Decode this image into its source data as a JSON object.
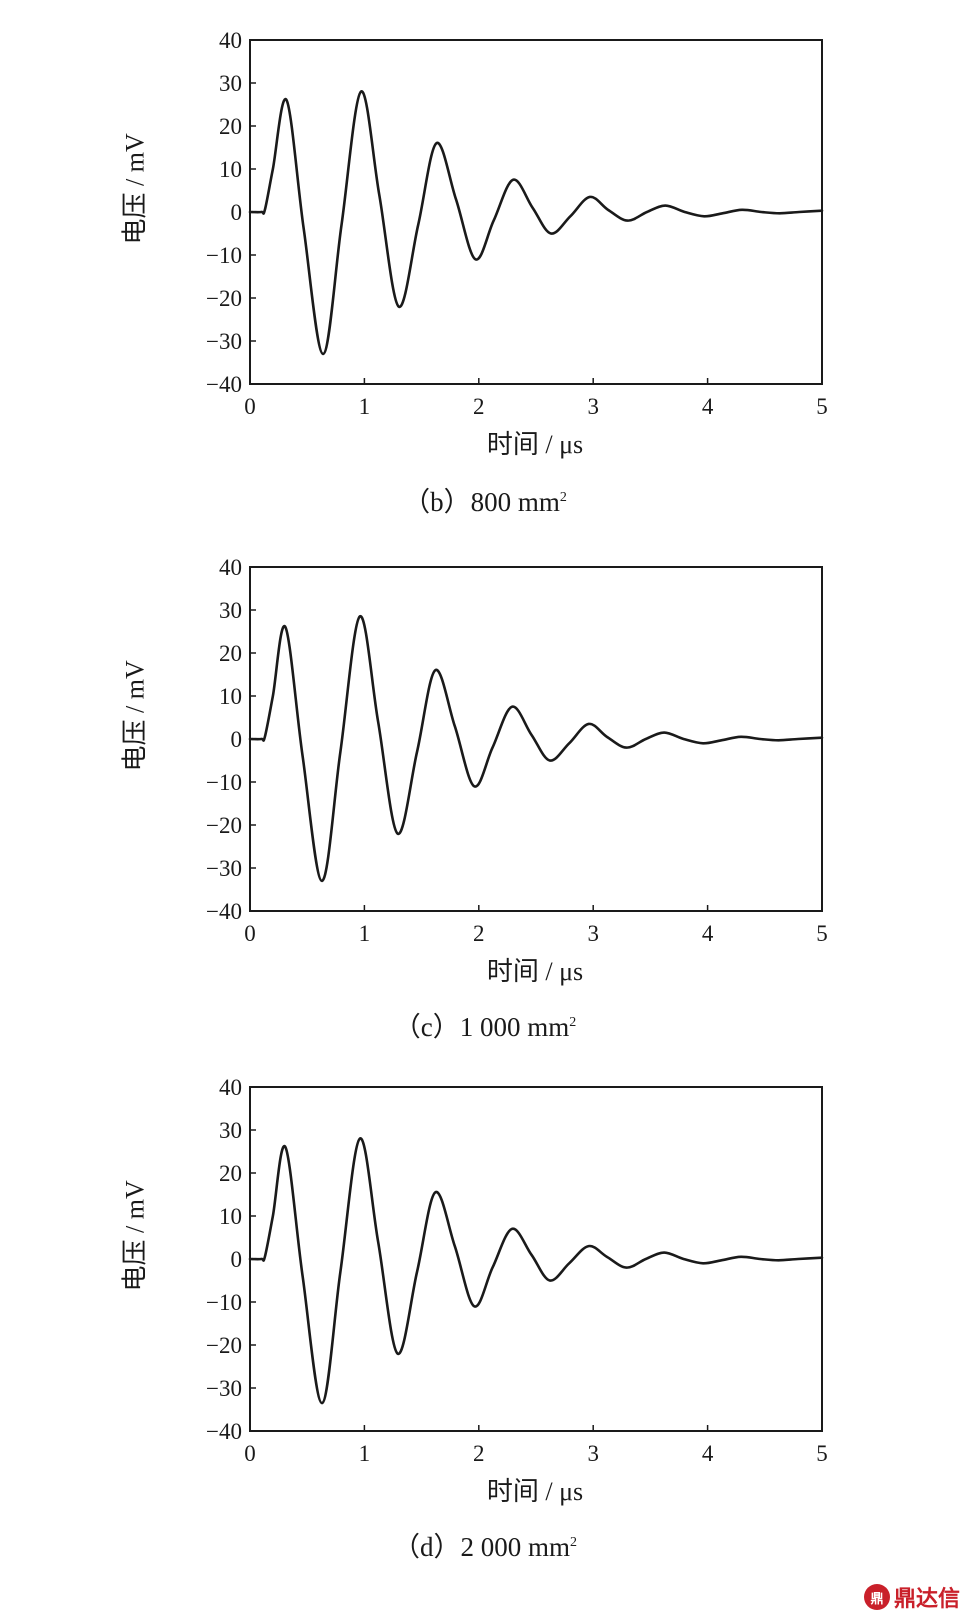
{
  "chart_data": [
    {
      "type": "line",
      "caption_prefix": "（b）800 mm",
      "caption_sup": "2",
      "xlabel": "时间 / μs",
      "ylabel": "电压 / mV",
      "xlim": [
        0,
        5
      ],
      "ylim": [
        -40,
        40
      ],
      "xticks": [
        0,
        1,
        2,
        3,
        4,
        5
      ],
      "yticks": [
        40,
        30,
        20,
        10,
        0,
        -10,
        -20,
        -30,
        -40
      ],
      "grid": false,
      "series": [
        {
          "color": "#1a1a1a",
          "x": [
            0,
            0.1,
            0.13,
            0.2,
            0.32,
            0.47,
            0.64,
            0.8,
            0.97,
            1.13,
            1.3,
            1.47,
            1.63,
            1.8,
            1.97,
            2.13,
            2.3,
            2.47,
            2.63,
            2.8,
            2.97,
            3.13,
            3.3,
            3.47,
            3.63,
            3.8,
            3.97,
            4.13,
            4.3,
            4.47,
            4.63,
            4.8,
            5.0
          ],
          "y": [
            0,
            0,
            0.5,
            10,
            26,
            -4,
            -33,
            -3,
            28,
            4,
            -22,
            -3,
            16,
            3,
            -11,
            -2,
            7.5,
            1,
            -5,
            -1,
            3.5,
            0.5,
            -2,
            0,
            1.5,
            0,
            -1,
            -0.3,
            0.5,
            0,
            -0.3,
            0,
            0.3
          ]
        }
      ]
    },
    {
      "type": "line",
      "caption_prefix": "（c）1 000 mm",
      "caption_sup": "2",
      "xlabel": "时间 / μs",
      "ylabel": "电压 / mV",
      "xlim": [
        0,
        5
      ],
      "ylim": [
        -40,
        40
      ],
      "xticks": [
        0,
        1,
        2,
        3,
        4,
        5
      ],
      "yticks": [
        40,
        30,
        20,
        10,
        0,
        -10,
        -20,
        -30,
        -40
      ],
      "grid": false,
      "series": [
        {
          "color": "#1a1a1a",
          "x": [
            0,
            0.1,
            0.13,
            0.2,
            0.31,
            0.46,
            0.63,
            0.79,
            0.96,
            1.12,
            1.29,
            1.46,
            1.62,
            1.79,
            1.96,
            2.12,
            2.29,
            2.46,
            2.62,
            2.79,
            2.96,
            3.12,
            3.29,
            3.46,
            3.62,
            3.79,
            3.96,
            4.12,
            4.29,
            4.46,
            4.62,
            4.79,
            5.0
          ],
          "y": [
            0,
            0,
            0.5,
            10,
            26,
            -4,
            -33,
            -3,
            28.5,
            4,
            -22,
            -3,
            16,
            3,
            -11,
            -2,
            7.5,
            1,
            -5,
            -1,
            3.5,
            0.5,
            -2,
            0,
            1.5,
            0,
            -1,
            -0.3,
            0.5,
            0,
            -0.3,
            0,
            0.3
          ]
        }
      ]
    },
    {
      "type": "line",
      "caption_prefix": "（d）2 000 mm",
      "caption_sup": "2",
      "xlabel": "时间 / μs",
      "ylabel": "电压 / mV",
      "xlim": [
        0,
        5
      ],
      "ylim": [
        -40,
        40
      ],
      "xticks": [
        0,
        1,
        2,
        3,
        4,
        5
      ],
      "yticks": [
        40,
        30,
        20,
        10,
        0,
        -10,
        -20,
        -30,
        -40
      ],
      "grid": false,
      "series": [
        {
          "color": "#1a1a1a",
          "x": [
            0,
            0.1,
            0.13,
            0.2,
            0.31,
            0.46,
            0.63,
            0.79,
            0.96,
            1.12,
            1.29,
            1.46,
            1.62,
            1.79,
            1.96,
            2.12,
            2.29,
            2.46,
            2.62,
            2.79,
            2.96,
            3.12,
            3.29,
            3.46,
            3.62,
            3.79,
            3.96,
            4.12,
            4.29,
            4.46,
            4.62,
            4.79,
            5.0
          ],
          "y": [
            0,
            0,
            0.5,
            10,
            26,
            -4,
            -33.5,
            -3,
            28,
            4,
            -22,
            -3,
            15.5,
            3,
            -11,
            -2,
            7,
            1,
            -5,
            -1,
            3,
            0.5,
            -2,
            0,
            1.5,
            0,
            -1,
            -0.3,
            0.5,
            0,
            -0.3,
            0,
            0.3
          ]
        }
      ]
    }
  ],
  "watermark": {
    "logo_text": "鼎",
    "text": "鼎达信"
  }
}
